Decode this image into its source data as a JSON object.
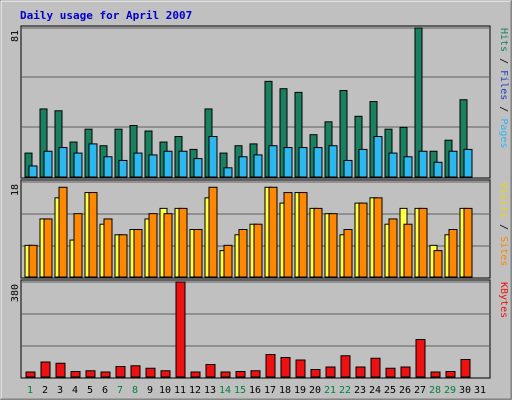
{
  "chart_data": [
    {
      "type": "bar",
      "title": "Daily usage for April 2007",
      "ymax_label": "81",
      "ylim": [
        0,
        81
      ],
      "categories": [
        "1",
        "2",
        "3",
        "4",
        "5",
        "6",
        "7",
        "8",
        "9",
        "10",
        "11",
        "12",
        "13",
        "14",
        "15",
        "16",
        "17",
        "18",
        "19",
        "20",
        "21",
        "22",
        "23",
        "24",
        "25",
        "26",
        "27",
        "28",
        "29",
        "30",
        "31"
      ],
      "weekend_days": [
        "1",
        "7",
        "8",
        "14",
        "15",
        "21",
        "22",
        "28",
        "29"
      ],
      "series": [
        {
          "name": "Hits",
          "color": "#1a8060",
          "values": [
            13,
            37,
            36,
            19,
            26,
            17,
            26,
            28,
            25,
            19,
            22,
            15,
            37,
            13,
            17,
            18,
            52,
            48,
            46,
            23,
            30,
            47,
            33,
            41,
            26,
            27,
            81,
            14,
            20,
            42,
            0
          ]
        },
        {
          "name": "Files",
          "color": "#2db8f0",
          "values": [
            6,
            14,
            16,
            13,
            18,
            11,
            9,
            13,
            12,
            14,
            14,
            10,
            22,
            5,
            11,
            12,
            17,
            16,
            16,
            16,
            17,
            9,
            15,
            22,
            13,
            11,
            14,
            8,
            14,
            15,
            0
          ]
        },
        {
          "name": "Pages",
          "color": "#2040c0",
          "values": [
            0,
            0,
            0,
            0,
            0,
            0,
            0,
            0,
            0,
            0,
            0,
            0,
            0,
            0,
            0,
            0,
            0,
            0,
            0,
            0,
            0,
            0,
            0,
            0,
            0,
            0,
            0,
            0,
            0,
            0,
            0
          ]
        }
      ]
    },
    {
      "type": "bar",
      "ymax_label": "18",
      "ylim": [
        0,
        18
      ],
      "series": [
        {
          "name": "Visits",
          "color": "#ffff44",
          "values": [
            6,
            11,
            15,
            7,
            16,
            10,
            8,
            9,
            11,
            13,
            13,
            9,
            15,
            5,
            8,
            10,
            17,
            14,
            16,
            13,
            12,
            8,
            14,
            15,
            10,
            13,
            13,
            6,
            8,
            13,
            0
          ]
        },
        {
          "name": "Sites",
          "color": "#ff8800",
          "values": [
            6,
            11,
            17,
            12,
            16,
            11,
            8,
            9,
            12,
            12,
            13,
            9,
            17,
            6,
            9,
            10,
            17,
            16,
            16,
            13,
            12,
            9,
            14,
            15,
            11,
            10,
            13,
            5,
            9,
            13,
            0
          ]
        }
      ]
    },
    {
      "type": "bar",
      "ymax_label": "380",
      "ylim": [
        0,
        380
      ],
      "series": [
        {
          "name": "KBytes",
          "color": "#ee1111",
          "values": [
            20,
            60,
            55,
            22,
            25,
            20,
            42,
            45,
            35,
            25,
            380,
            20,
            50,
            20,
            22,
            25,
            90,
            78,
            68,
            30,
            40,
            85,
            40,
            75,
            35,
            40,
            150,
            20,
            22,
            70,
            0
          ]
        }
      ]
    }
  ],
  "colors": {
    "background": "#c0c0c0",
    "hits": "#1a8060",
    "files": "#2db8f0",
    "pages": "#2040c0",
    "visits": "#ffff44",
    "sites": "#ff8800",
    "kbytes": "#ee1111",
    "weekday_label": "#000000",
    "weekend_label": "#008040",
    "title": "#0000cc"
  },
  "side_labels": {
    "top": [
      {
        "text": "Pages",
        "color": "#2db8f0"
      },
      {
        "text": " / ",
        "color": "#000000"
      },
      {
        "text": "Files",
        "color": "#2040c0"
      },
      {
        "text": " / ",
        "color": "#000000"
      },
      {
        "text": "Hits",
        "color": "#1a8060"
      }
    ],
    "middle": [
      {
        "text": "Sites",
        "color": "#ff8800"
      },
      {
        "text": " / ",
        "color": "#000000"
      },
      {
        "text": "Visits",
        "color": "#e8d800"
      }
    ],
    "bottom": [
      {
        "text": "KBytes",
        "color": "#ee1111"
      }
    ]
  }
}
